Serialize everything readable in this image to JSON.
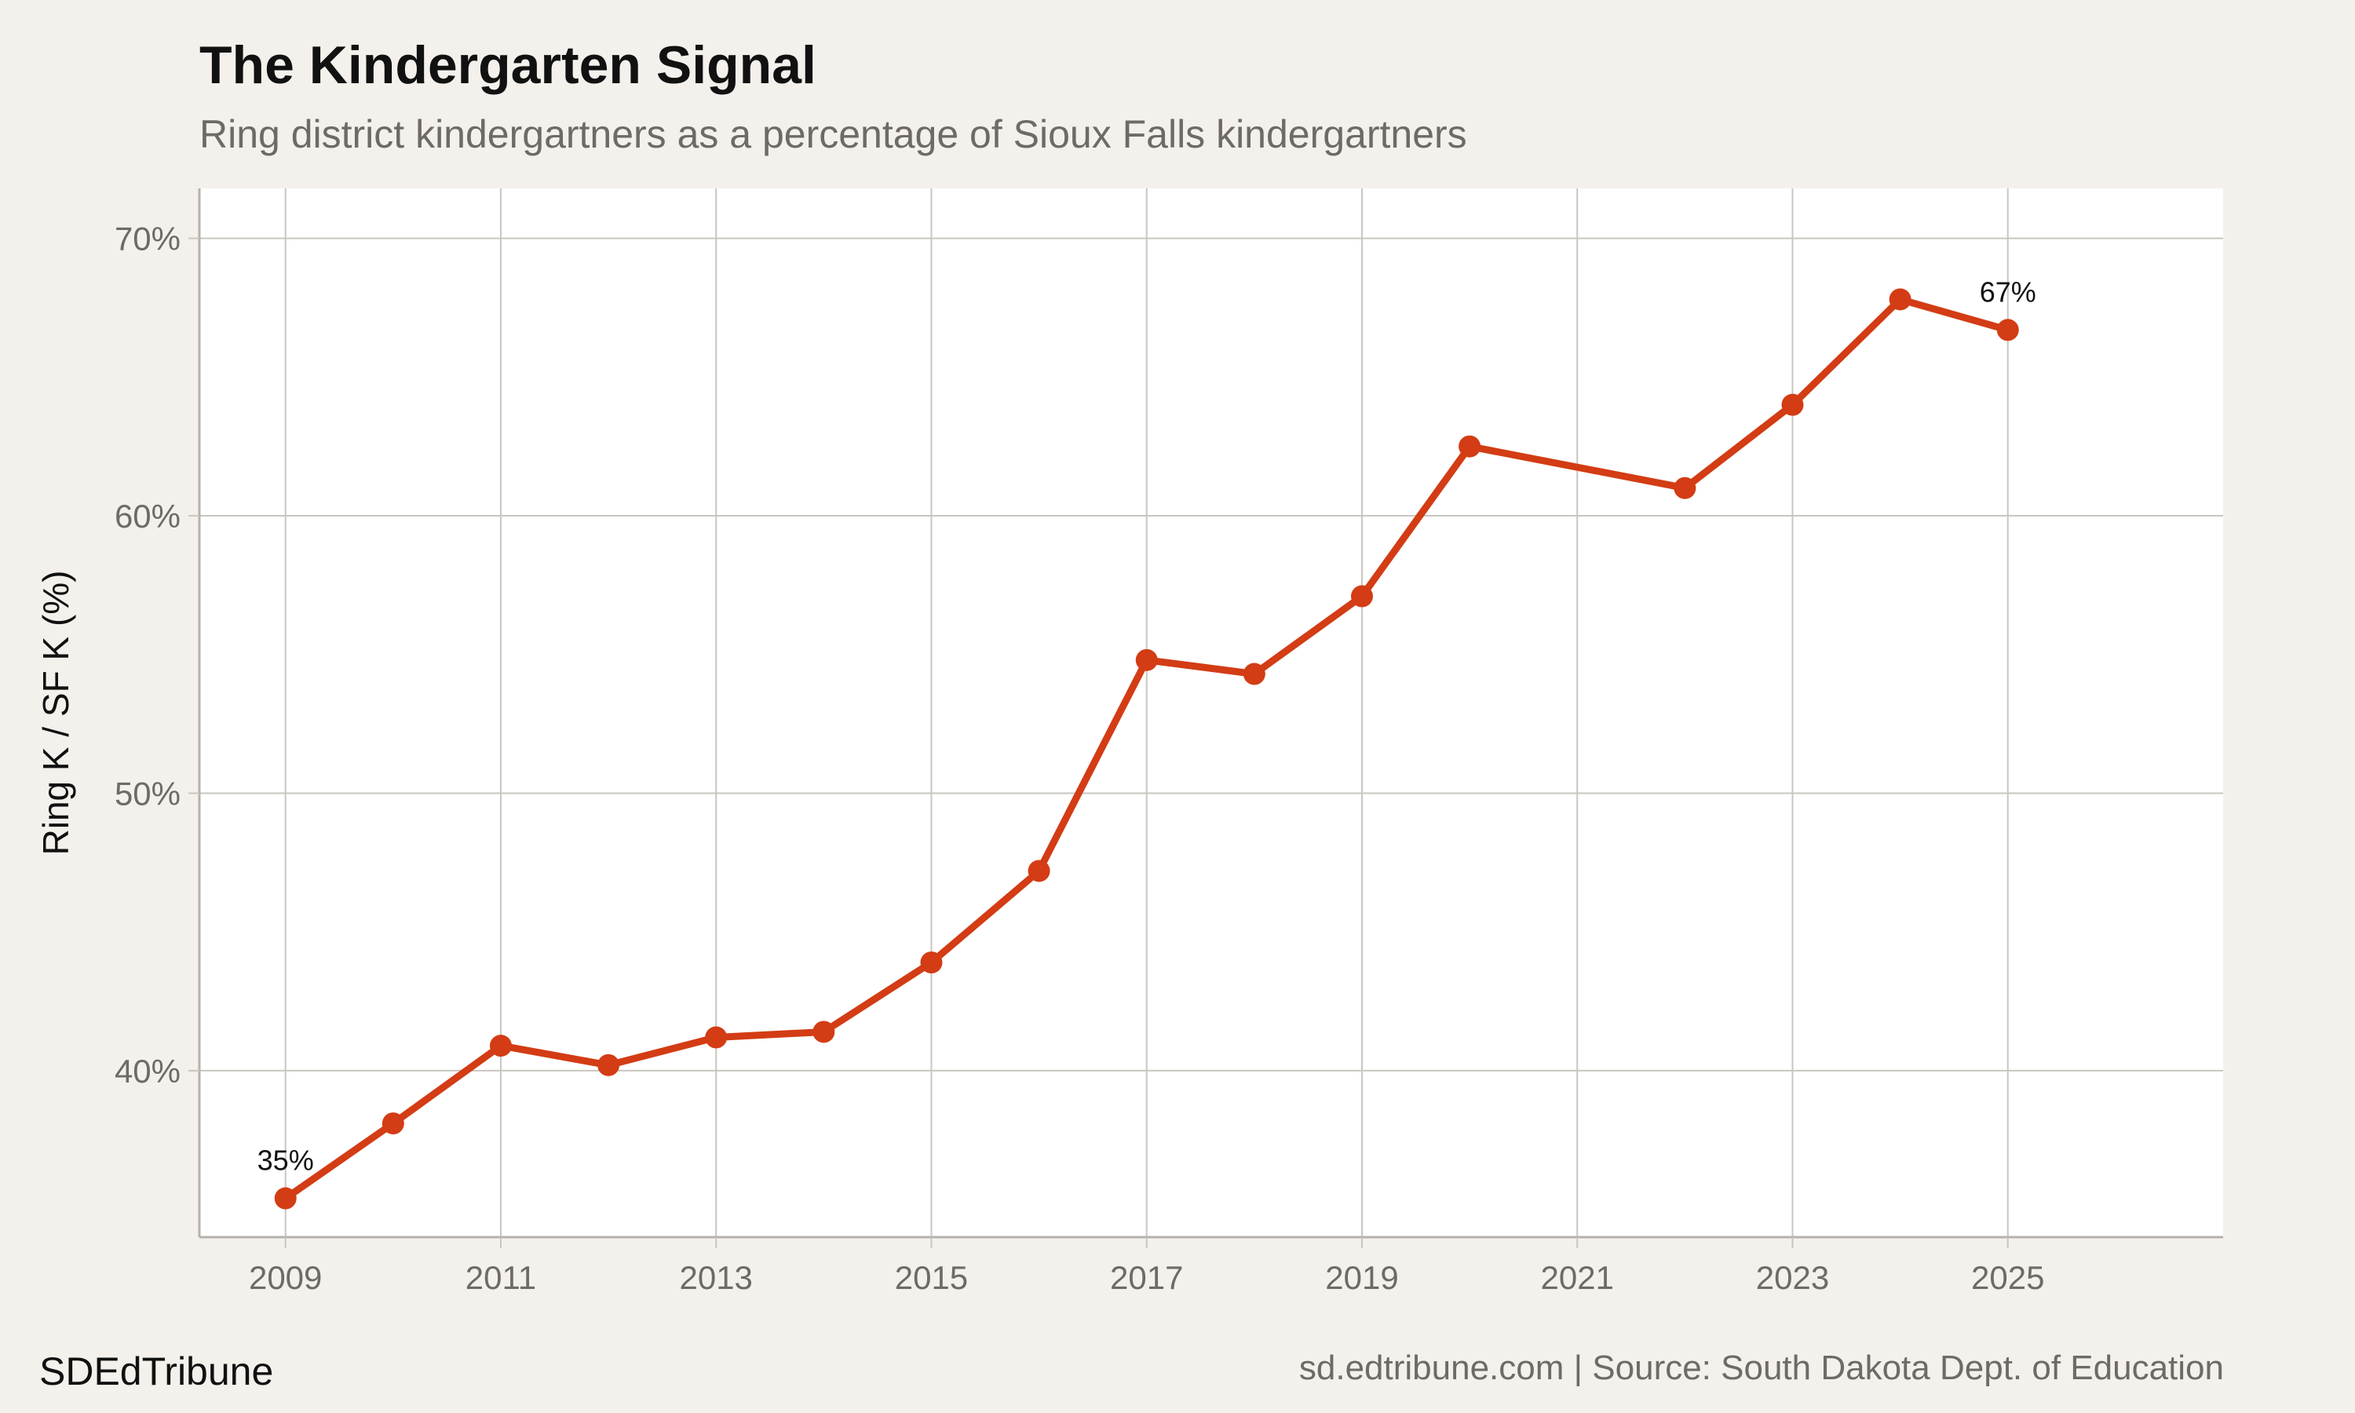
{
  "header": {
    "title": "The Kindergarten Signal",
    "subtitle": "Ring district kindergartners as a percentage of Sioux Falls kindergartners"
  },
  "footer": {
    "brand": "SDEdTribune",
    "source": "sd.edtribune.com | Source: South Dakota Dept. of Education"
  },
  "colors": {
    "background": "#f4f1ec",
    "panel": "#ffffff",
    "grid": "#c9c6c0",
    "line": "#d33c14",
    "muted_text": "#6e6a66"
  },
  "chart_data": {
    "type": "line",
    "title": "The Kindergarten Signal",
    "subtitle": "Ring district kindergartners as a percentage of Sioux Falls kindergartners",
    "xlabel": "",
    "ylabel": "Ring K / SF K (%)",
    "x": [
      2009,
      2010,
      2011,
      2012,
      2013,
      2014,
      2015,
      2016,
      2017,
      2018,
      2019,
      2020,
      2022,
      2023,
      2024,
      2025
    ],
    "series": [
      {
        "values": [
          35.4,
          38.1,
          40.9,
          40.2,
          41.2,
          41.4,
          43.9,
          47.2,
          54.8,
          54.3,
          57.1,
          62.5,
          61.0,
          64.0,
          67.8,
          66.7
        ]
      }
    ],
    "xlim": [
      2008.2,
      2027.0
    ],
    "ylim": [
      34.0,
      71.8
    ],
    "x_ticks": [
      2009,
      2011,
      2013,
      2015,
      2017,
      2019,
      2021,
      2023,
      2025
    ],
    "y_ticks": [
      40,
      50,
      60,
      70
    ],
    "y_tick_labels": [
      "40%",
      "50%",
      "60%",
      "70%"
    ],
    "annotations": [
      {
        "x": 2009,
        "text": "35%"
      },
      {
        "x": 2025,
        "text": "67%"
      }
    ],
    "grid": true,
    "legend": "none"
  }
}
